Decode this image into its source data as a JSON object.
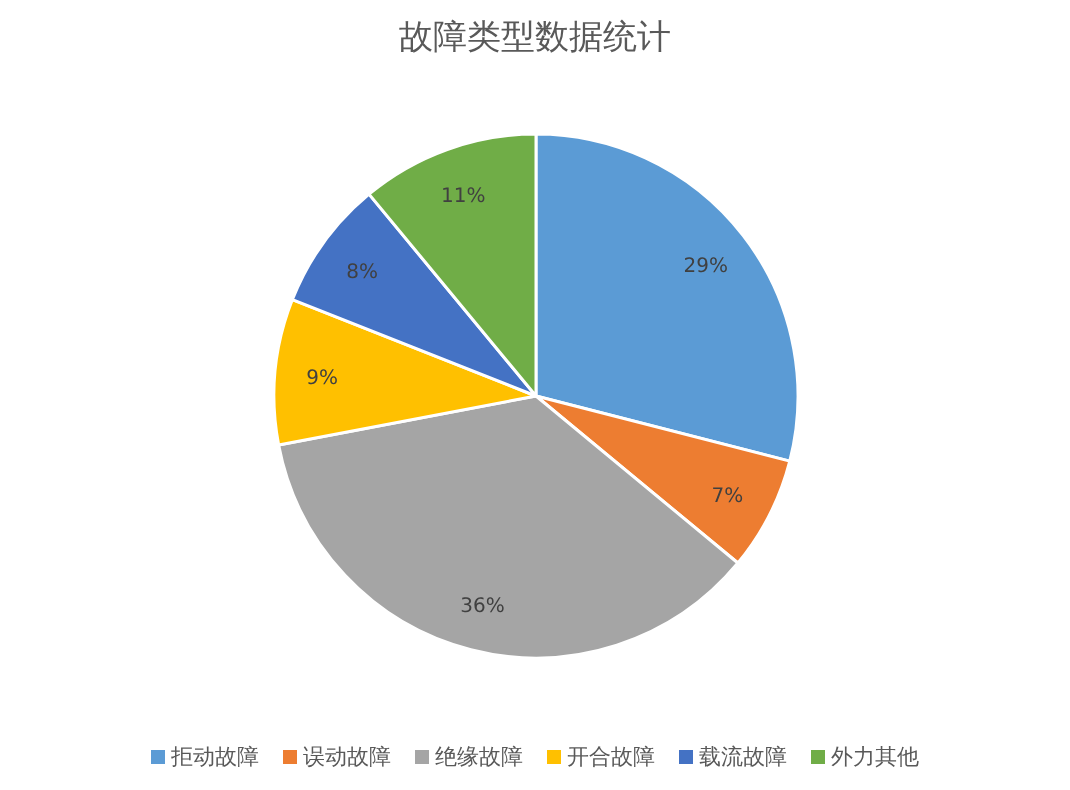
{
  "chart_data": {
    "type": "pie",
    "title": "故障类型数据统计",
    "categories": [
      "拒动故障",
      "误动故障",
      "绝缘故障",
      "开合故障",
      "载流故障",
      "外力其他"
    ],
    "values": [
      29,
      7,
      36,
      9,
      8,
      11
    ],
    "colors": [
      "#5b9bd5",
      "#ed7d31",
      "#a5a5a5",
      "#ffc000",
      "#4472c4",
      "#70ad47"
    ],
    "value_labels": [
      "29%",
      "7%",
      "36%",
      "9%",
      "8%",
      "11%"
    ],
    "legend": "bottom"
  }
}
